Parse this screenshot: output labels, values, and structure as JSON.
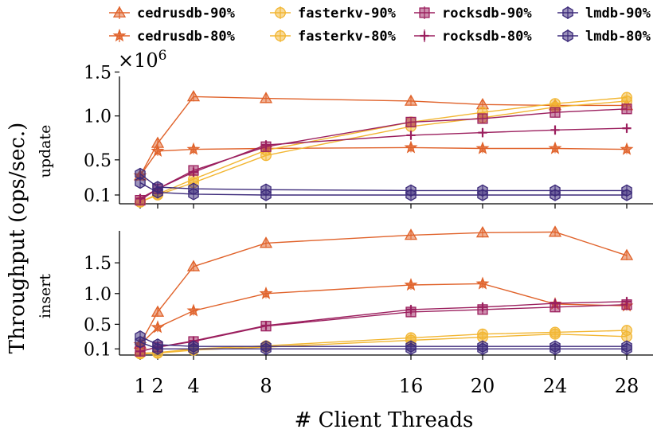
{
  "chart_data": {
    "type": "line",
    "x": [
      1,
      2,
      4,
      8,
      16,
      20,
      24,
      28
    ],
    "xlabel": "# Client Threads",
    "ylabel": "Throughput (ops/sec.)",
    "scale_label": "×10",
    "scale_exp": "6",
    "xticks": [
      "1",
      "2",
      "4",
      "8",
      "16",
      "20",
      "24",
      "28"
    ],
    "colors": {
      "cedrusdb": "#e0622a",
      "fasterkv": "#f2b632",
      "rocksdb": "#9b1f5e",
      "lmdb": "#3c2a7a"
    },
    "legend": [
      {
        "label": "cedrusdb-90%",
        "system": "cedrusdb",
        "marker": "triangle"
      },
      {
        "label": "cedrusdb-80%",
        "system": "cedrusdb",
        "marker": "star"
      },
      {
        "label": "fasterkv-90%",
        "system": "fasterkv",
        "marker": "circle"
      },
      {
        "label": "fasterkv-80%",
        "system": "fasterkv",
        "marker": "circle"
      },
      {
        "label": "rocksdb-90%",
        "system": "rocksdb",
        "marker": "square"
      },
      {
        "label": "rocksdb-80%",
        "system": "rocksdb",
        "marker": "plus"
      },
      {
        "label": "lmdb-90%",
        "system": "lmdb",
        "marker": "hexagon"
      },
      {
        "label": "lmdb-80%",
        "system": "lmdb",
        "marker": "hexagon"
      }
    ],
    "panels": [
      {
        "name": "update",
        "subtitle": "update",
        "ylim": [
          0.0,
          1.45
        ],
        "yticks": [
          "0.1",
          "0.5",
          "1.0",
          "1.5"
        ],
        "series": [
          {
            "name": "cedrusdb-90%",
            "values": [
              0.32,
              0.69,
              1.22,
              1.2,
              1.17,
              1.13,
              1.12,
              1.12
            ]
          },
          {
            "name": "cedrusdb-80%",
            "values": [
              0.32,
              0.6,
              0.62,
              0.63,
              0.64,
              0.63,
              0.63,
              0.62
            ]
          },
          {
            "name": "fasterkv-90%",
            "values": [
              0.02,
              0.11,
              0.28,
              0.61,
              0.93,
              1.04,
              1.14,
              1.21
            ]
          },
          {
            "name": "fasterkv-80%",
            "values": [
              0.02,
              0.1,
              0.24,
              0.55,
              0.88,
              0.98,
              1.1,
              1.17
            ]
          },
          {
            "name": "rocksdb-90%",
            "values": [
              0.04,
              0.17,
              0.38,
              0.65,
              0.93,
              0.97,
              1.04,
              1.08
            ]
          },
          {
            "name": "rocksdb-80%",
            "values": [
              0.06,
              0.17,
              0.36,
              0.67,
              0.78,
              0.81,
              0.84,
              0.86
            ]
          },
          {
            "name": "lmdb-90%",
            "values": [
              0.34,
              0.19,
              0.17,
              0.16,
              0.15,
              0.15,
              0.15,
              0.15
            ]
          },
          {
            "name": "lmdb-80%",
            "values": [
              0.24,
              0.13,
              0.11,
              0.1,
              0.1,
              0.1,
              0.1,
              0.1
            ]
          }
        ]
      },
      {
        "name": "insert",
        "subtitle": "insert",
        "ylim": [
          0.0,
          2.02
        ],
        "yticks": [
          "0.1",
          "0.5",
          "1.0",
          "1.5"
        ],
        "series": [
          {
            "name": "cedrusdb-90%",
            "values": [
              0.18,
              0.7,
              1.44,
              1.82,
              1.95,
              1.99,
              2.0,
              1.62
            ]
          },
          {
            "name": "cedrusdb-80%",
            "values": [
              0.17,
              0.45,
              0.72,
              1.0,
              1.14,
              1.16,
              0.83,
              0.8
            ]
          },
          {
            "name": "fasterkv-90%",
            "values": [
              0.03,
              0.04,
              0.1,
              0.15,
              0.28,
              0.34,
              0.37,
              0.4
            ]
          },
          {
            "name": "fasterkv-80%",
            "values": [
              0.02,
              0.03,
              0.08,
              0.13,
              0.24,
              0.29,
              0.34,
              0.3
            ]
          },
          {
            "name": "rocksdb-90%",
            "values": [
              0.06,
              0.13,
              0.22,
              0.47,
              0.7,
              0.74,
              0.78,
              0.82
            ]
          },
          {
            "name": "rocksdb-80%",
            "values": [
              0.06,
              0.13,
              0.23,
              0.48,
              0.74,
              0.78,
              0.84,
              0.87
            ]
          },
          {
            "name": "lmdb-90%",
            "values": [
              0.3,
              0.17,
              0.14,
              0.14,
              0.14,
              0.14,
              0.14,
              0.14
            ]
          },
          {
            "name": "lmdb-80%",
            "values": [
              0.21,
              0.1,
              0.1,
              0.1,
              0.1,
              0.1,
              0.1,
              0.1
            ]
          }
        ]
      }
    ]
  }
}
